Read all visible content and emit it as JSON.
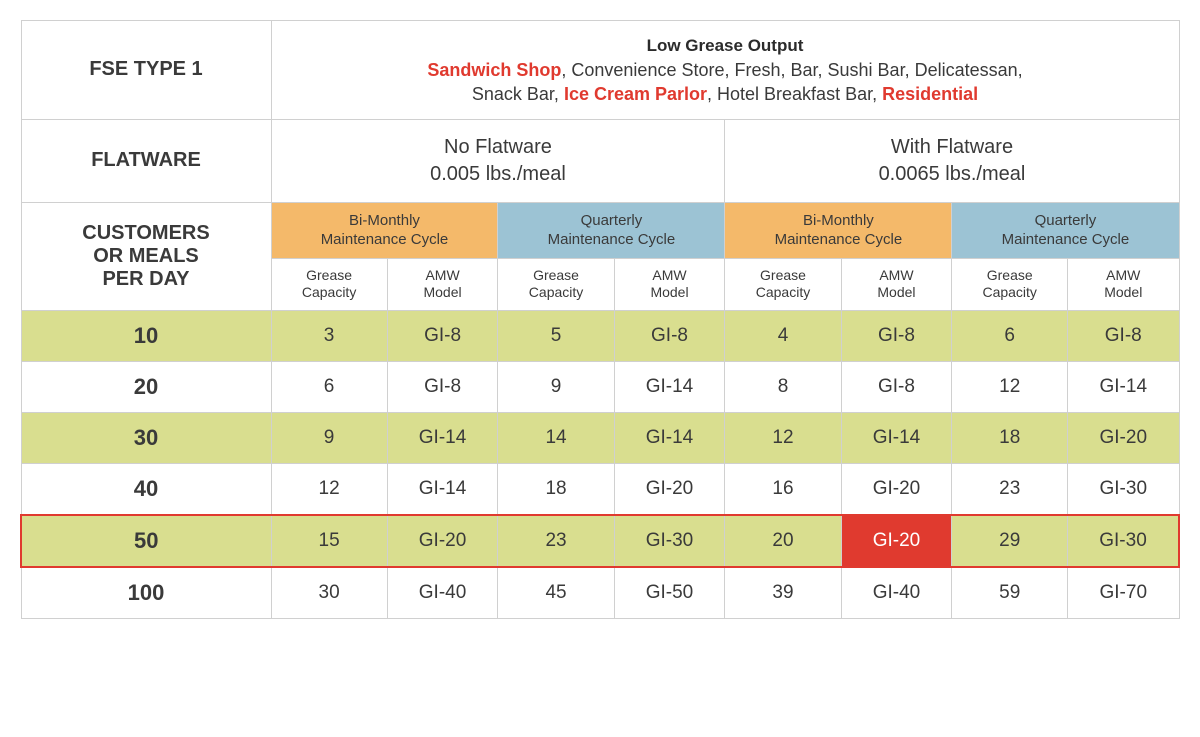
{
  "header": {
    "fse_label": "FSE TYPE 1",
    "desc_title": "Low Grease Output",
    "desc_parts": [
      {
        "text": "Sandwich Shop",
        "hl": true
      },
      {
        "text": ", Convenience Store, Fresh, Bar, Sushi Bar, Delicatessan,",
        "hl": false
      },
      {
        "text": "\nSnack Bar, ",
        "hl": false
      },
      {
        "text": "Ice Cream Parlor",
        "hl": true
      },
      {
        "text": ", Hotel Breakfast Bar, ",
        "hl": false
      },
      {
        "text": "Residential",
        "hl": true
      }
    ],
    "flatware_label": "FLATWARE",
    "no_flatware_title": "No Flatware",
    "no_flatware_sub": "0.005 lbs./meal",
    "with_flatware_title": "With Flatware",
    "with_flatware_sub": "0.0065 lbs./meal",
    "meals_label_l1": "CUSTOMERS",
    "meals_label_l2": "OR MEALS",
    "meals_label_l3": "PER DAY",
    "cycle_bm_l1": "Bi-Monthly",
    "cycle_bm_l2": "Maintenance Cycle",
    "cycle_q_l1": "Quarterly",
    "cycle_q_l2": "Maintenance Cycle",
    "sub_grease_l1": "Grease",
    "sub_grease_l2": "Capacity",
    "sub_amw_l1": "AMW",
    "sub_amw_l2": "Model"
  },
  "rows": [
    {
      "label": "10",
      "odd": true,
      "cells": [
        "3",
        "GI-8",
        "5",
        "GI-8",
        "4",
        "GI-8",
        "6",
        "GI-8"
      ]
    },
    {
      "label": "20",
      "odd": false,
      "cells": [
        "6",
        "GI-8",
        "9",
        "GI-14",
        "8",
        "GI-8",
        "12",
        "GI-14"
      ]
    },
    {
      "label": "30",
      "odd": true,
      "cells": [
        "9",
        "GI-14",
        "14",
        "GI-14",
        "12",
        "GI-14",
        "18",
        "GI-20"
      ]
    },
    {
      "label": "40",
      "odd": false,
      "cells": [
        "12",
        "GI-14",
        "18",
        "GI-20",
        "16",
        "GI-20",
        "23",
        "GI-30"
      ]
    },
    {
      "label": "50",
      "odd": true,
      "redOutline": true,
      "cells": [
        "15",
        "GI-20",
        "23",
        "GI-30",
        "20",
        "GI-20",
        "29",
        "GI-30"
      ],
      "redCell": 5
    },
    {
      "label": "100",
      "odd": false,
      "cells": [
        "30",
        "GI-40",
        "45",
        "GI-50",
        "39",
        "GI-40",
        "59",
        "GI-70"
      ]
    }
  ],
  "style": {
    "colors": {
      "border": "#d0d0d0",
      "text": "#3a3a3a",
      "highlight": "#e03a2f",
      "odd_row_bg": "#d9de8f",
      "cycle_bm_bg": "#f4b96a",
      "cycle_q_bg": "#9cc3d4",
      "red_cell_bg": "#e03a2f",
      "red_cell_text": "#ffffff"
    },
    "font_sizes": {
      "hdr_label": 20,
      "desc_title": 17,
      "desc_body": 18,
      "flatware": 20,
      "cycle": 15,
      "sub_col": 14,
      "row_label": 22,
      "data_cell": 19
    }
  }
}
